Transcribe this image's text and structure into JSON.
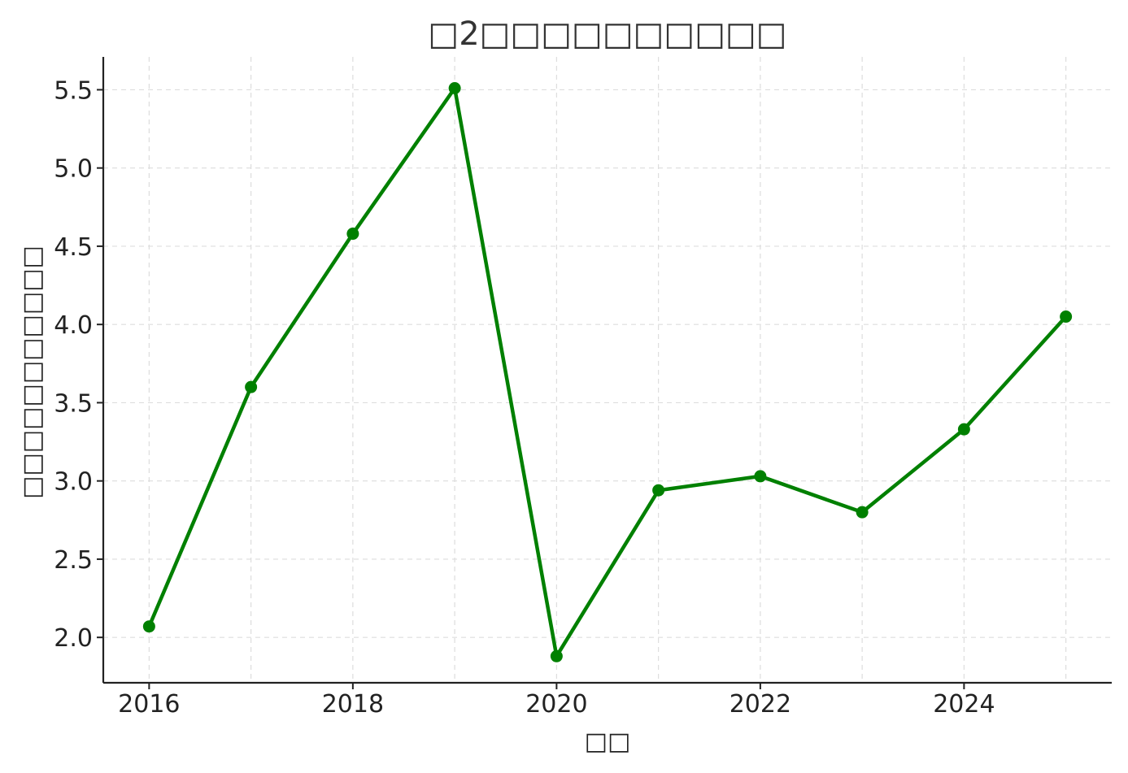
{
  "chart_data": {
    "type": "line",
    "title": "□2□□□□□□□□□□",
    "xlabel": "□□",
    "ylabel": "□□□□□□□□□□□",
    "x": [
      2016,
      2017,
      2018,
      2019,
      2020,
      2021,
      2022,
      2023,
      2024,
      2025
    ],
    "series": [
      {
        "values": [
          2.07,
          3.6,
          4.58,
          5.51,
          1.88,
          2.94,
          3.03,
          2.8,
          3.33,
          4.05
        ],
        "color": "#008000"
      }
    ],
    "x_ticks": [
      "2016",
      "2018",
      "2020",
      "2022",
      "2024"
    ],
    "y_ticks": [
      "2.0",
      "2.5",
      "3.0",
      "3.5",
      "4.0",
      "4.5",
      "5.0",
      "5.5"
    ],
    "xlim": [
      2015.55,
      2025.45
    ],
    "ylim": [
      1.71,
      5.71
    ],
    "grid": true,
    "marker": "circle"
  }
}
